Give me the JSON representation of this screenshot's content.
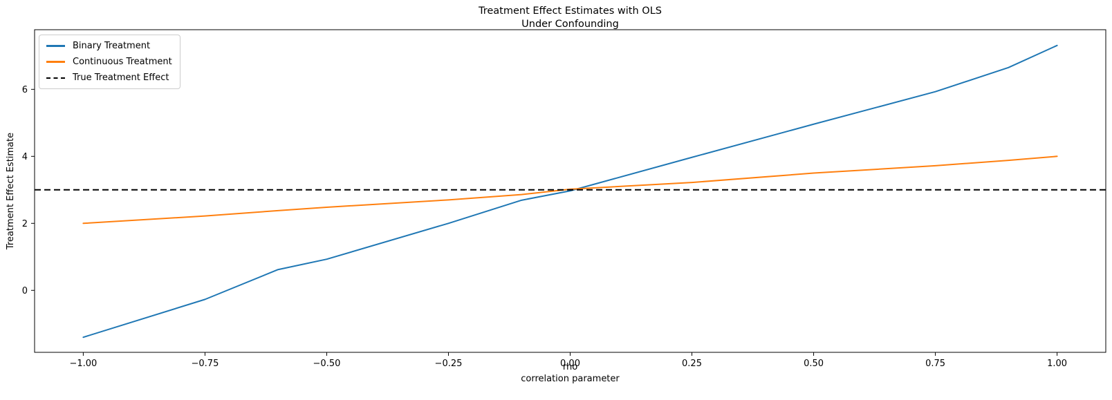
{
  "figure": {
    "title_line1": "Treatment Effect Estimates with OLS",
    "title_line2": "Under Confounding",
    "xlabel_line1": "rho",
    "xlabel_line2": "correlation parameter",
    "ylabel": "Treatment Effect Estimate"
  },
  "chart_data": {
    "type": "line",
    "title": "Treatment Effect Estimates with OLS\nUnder Confounding",
    "xlabel": "rho\ncorrelation parameter",
    "ylabel": "Treatment Effect Estimate",
    "xlim": [
      -1.1,
      1.1
    ],
    "ylim": [
      -1.85,
      7.78
    ],
    "x_ticks": [
      -1.0,
      -0.75,
      -0.5,
      -0.25,
      0.0,
      0.25,
      0.5,
      0.75,
      1.0
    ],
    "x_tick_labels": [
      "−1.00",
      "−0.75",
      "−0.50",
      "−0.25",
      "0.00",
      "0.25",
      "0.50",
      "0.75",
      "1.00"
    ],
    "y_ticks": [
      0,
      2,
      4,
      6
    ],
    "y_tick_labels": [
      "0",
      "2",
      "4",
      "6"
    ],
    "grid": false,
    "legend_position": "upper-left",
    "x": [
      -1.0,
      -0.75,
      -0.6,
      -0.5,
      -0.25,
      -0.1,
      0.0,
      0.25,
      0.5,
      0.75,
      0.9,
      1.0
    ],
    "series": [
      {
        "name": "Binary Treatment",
        "color": "#1f77b4",
        "line_style": "solid",
        "values": [
          -1.4,
          -0.27,
          0.62,
          0.93,
          2.0,
          2.69,
          2.97,
          3.97,
          4.96,
          5.93,
          6.65,
          7.31
        ]
      },
      {
        "name": "Continuous Treatment",
        "color": "#ff7f0e",
        "line_style": "solid",
        "values": [
          2.0,
          2.22,
          2.38,
          2.48,
          2.7,
          2.86,
          3.02,
          3.22,
          3.5,
          3.72,
          3.88,
          4.0
        ]
      },
      {
        "name": "True Treatment Effect",
        "color": "#000000",
        "line_style": "dashed",
        "constant": 3.0
      }
    ]
  }
}
